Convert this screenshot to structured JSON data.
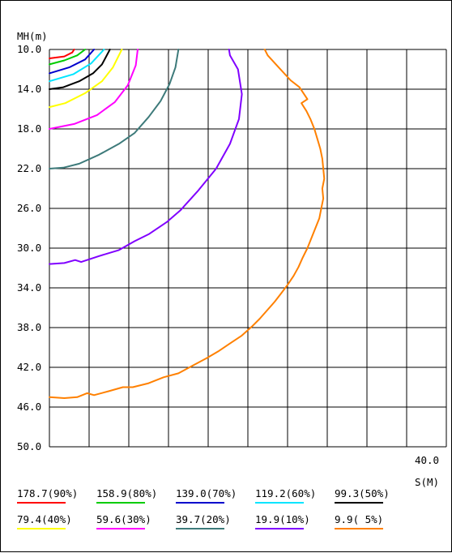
{
  "chart_data": {
    "type": "line",
    "ylabel": "MH(m)",
    "xlabel": "S(M)",
    "x_tick_label": "40.0",
    "xlim": [
      0,
      40
    ],
    "ylim": [
      10,
      50
    ],
    "y_ticks": [
      "10.0",
      "14.0",
      "18.0",
      "22.0",
      "26.0",
      "30.0",
      "34.0",
      "38.0",
      "42.0",
      "46.0",
      "50.0"
    ],
    "grid": true,
    "legend_position": "bottom",
    "series": [
      {
        "name": "178.7(90%)",
        "color": "#ff0000",
        "points": [
          [
            0,
            10.9
          ],
          [
            1.5,
            10.7
          ],
          [
            2.3,
            10.3
          ],
          [
            2.5,
            10.0
          ]
        ]
      },
      {
        "name": "158.9(80%)",
        "color": "#00cc00",
        "points": [
          [
            0,
            11.5
          ],
          [
            1.5,
            11.1
          ],
          [
            2.8,
            10.6
          ],
          [
            3.6,
            10.0
          ]
        ]
      },
      {
        "name": "139.0(70%)",
        "color": "#0000cc",
        "points": [
          [
            0,
            12.4
          ],
          [
            2.0,
            11.8
          ],
          [
            3.6,
            11.0
          ],
          [
            4.5,
            10.0
          ]
        ]
      },
      {
        "name": "119.2(60%)",
        "color": "#00e5ff",
        "points": [
          [
            0,
            13.2
          ],
          [
            2.4,
            12.5
          ],
          [
            4.2,
            11.4
          ],
          [
            5.5,
            10.0
          ]
        ]
      },
      {
        "name": "99.3(50%)",
        "color": "#000000",
        "points": [
          [
            0,
            14.0
          ],
          [
            1.4,
            13.8
          ],
          [
            3.0,
            13.2
          ],
          [
            4.4,
            12.4
          ],
          [
            5.3,
            11.5
          ],
          [
            6.1,
            10.0
          ]
        ]
      },
      {
        "name": "79.4(40%)",
        "color": "#ffff00",
        "points": [
          [
            0,
            15.8
          ],
          [
            1.6,
            15.4
          ],
          [
            3.6,
            14.4
          ],
          [
            5.3,
            13.2
          ],
          [
            6.4,
            11.8
          ],
          [
            7.3,
            10.0
          ]
        ]
      },
      {
        "name": "59.6(30%)",
        "color": "#ff00ff",
        "points": [
          [
            0,
            18.0
          ],
          [
            2.5,
            17.5
          ],
          [
            4.8,
            16.6
          ],
          [
            6.6,
            15.3
          ],
          [
            7.9,
            13.6
          ],
          [
            8.7,
            11.6
          ],
          [
            8.9,
            10.0
          ]
        ]
      },
      {
        "name": "39.7(20%)",
        "color": "#3d7a7a",
        "points": [
          [
            0,
            22.0
          ],
          [
            1.4,
            21.9
          ],
          [
            3.0,
            21.5
          ],
          [
            5.0,
            20.6
          ],
          [
            7.0,
            19.5
          ],
          [
            8.6,
            18.4
          ],
          [
            10.0,
            16.8
          ],
          [
            11.2,
            15.2
          ],
          [
            12.1,
            13.5
          ],
          [
            12.7,
            11.8
          ],
          [
            13.0,
            10.0
          ]
        ]
      },
      {
        "name": "19.9(10%)",
        "color": "#8000ff",
        "points": [
          [
            0,
            31.6
          ],
          [
            1.5,
            31.5
          ],
          [
            2.6,
            31.2
          ],
          [
            3.2,
            31.4
          ],
          [
            5.0,
            30.8
          ],
          [
            7.0,
            30.2
          ],
          [
            8.6,
            29.3
          ],
          [
            10.0,
            28.6
          ],
          [
            11.8,
            27.4
          ],
          [
            13.2,
            26.2
          ],
          [
            15.0,
            24.2
          ],
          [
            16.8,
            22.0
          ],
          [
            18.2,
            19.5
          ],
          [
            19.1,
            17.0
          ],
          [
            19.4,
            14.5
          ],
          [
            19.0,
            12.0
          ],
          [
            18.2,
            10.6
          ],
          [
            18.1,
            10.0
          ]
        ]
      },
      {
        "name": "9.9( 5%)",
        "color": "#ff8000",
        "points": [
          [
            0,
            45.0
          ],
          [
            1.5,
            45.1
          ],
          [
            2.8,
            45.0
          ],
          [
            3.8,
            44.6
          ],
          [
            4.5,
            44.8
          ],
          [
            6.0,
            44.4
          ],
          [
            7.4,
            44.0
          ],
          [
            8.4,
            44.0
          ],
          [
            10.0,
            43.6
          ],
          [
            11.5,
            43.0
          ],
          [
            13.0,
            42.6
          ],
          [
            14.5,
            41.8
          ],
          [
            15.8,
            41.1
          ],
          [
            17.0,
            40.4
          ],
          [
            18.2,
            39.6
          ],
          [
            19.4,
            38.8
          ],
          [
            20.4,
            37.9
          ],
          [
            21.2,
            37.1
          ],
          [
            22.0,
            36.2
          ],
          [
            22.7,
            35.4
          ],
          [
            23.4,
            34.5
          ],
          [
            24.0,
            33.7
          ],
          [
            24.6,
            32.8
          ],
          [
            25.1,
            31.9
          ],
          [
            25.5,
            31.0
          ],
          [
            26.0,
            30.0
          ],
          [
            26.4,
            29.0
          ],
          [
            26.8,
            28.0
          ],
          [
            27.2,
            27.0
          ],
          [
            27.4,
            26.0
          ],
          [
            27.6,
            25.0
          ],
          [
            27.5,
            24.0
          ],
          [
            27.7,
            23.0
          ],
          [
            27.6,
            22.0
          ],
          [
            27.5,
            21.0
          ],
          [
            27.3,
            20.0
          ],
          [
            27.0,
            19.0
          ],
          [
            26.7,
            18.0
          ],
          [
            26.3,
            17.0
          ],
          [
            25.9,
            16.2
          ],
          [
            25.4,
            15.4
          ],
          [
            26.0,
            15.0
          ],
          [
            25.2,
            13.8
          ],
          [
            24.3,
            13.1
          ],
          [
            23.1,
            11.8
          ],
          [
            22.0,
            10.6
          ],
          [
            21.7,
            10.0
          ]
        ]
      }
    ]
  }
}
